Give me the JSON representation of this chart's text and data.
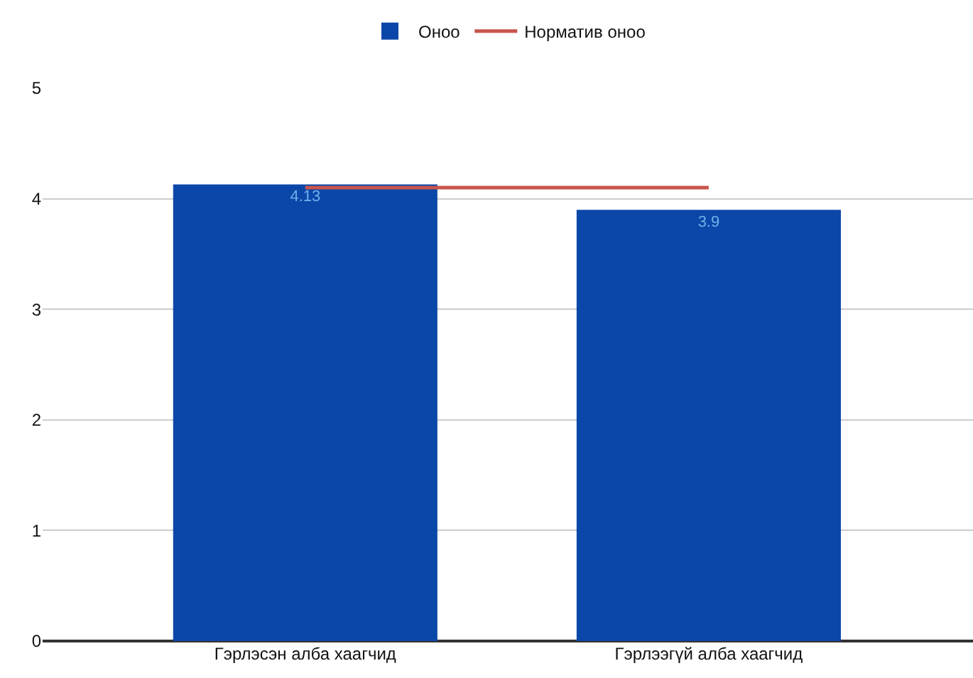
{
  "chart_data": {
    "type": "bar",
    "categories": [
      "Гэрлэсэн алба хаагчид",
      "Гэрлээгүй алба хаагчид"
    ],
    "series": [
      {
        "name": "Оноо",
        "color": "#0b47a8",
        "values": [
          4.13,
          3.9
        ],
        "value_labels": [
          "4.13",
          "3.9"
        ]
      },
      {
        "name": "Норматив оноо",
        "type": "line",
        "color": "#c8554e",
        "values": [
          4.1,
          4.1
        ]
      }
    ],
    "ylim": [
      0,
      5
    ],
    "yticks": [
      0,
      1,
      2,
      3,
      4,
      5
    ],
    "grid": "y",
    "legend": "top"
  }
}
